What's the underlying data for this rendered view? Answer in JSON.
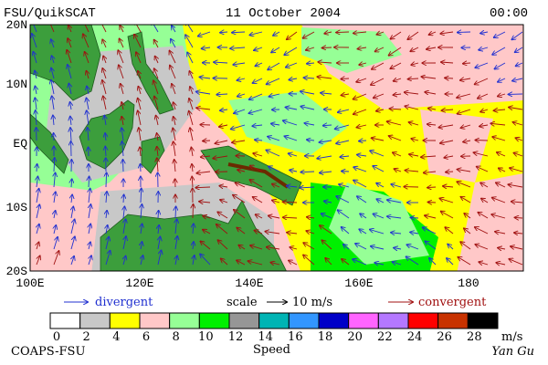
{
  "header": {
    "left": "FSU/QuikSCAT",
    "title": "11 October 2004",
    "time": "00:00"
  },
  "map": {
    "lat_labels": [
      "20N",
      "10N",
      "EQ",
      "10S",
      "20S"
    ],
    "lon_labels": [
      "100E",
      "120E",
      "140E",
      "160E",
      "180"
    ]
  },
  "key": {
    "divergent": "divergent",
    "scale": "scale",
    "scale_value": "10 m/s",
    "convergent": "convergent"
  },
  "colorbar": {
    "ticks": [
      0,
      2,
      4,
      6,
      8,
      10,
      12,
      14,
      16,
      18,
      20,
      22,
      24,
      26,
      28
    ],
    "unit": "m/s",
    "title": "Speed",
    "colors": [
      "#ffffff",
      "#c8c8c8",
      "#ffff00",
      "#ffc8c8",
      "#96ff96",
      "#00f000",
      "#969696",
      "#00b4b4",
      "#3296ff",
      "#0000c8",
      "#ff64ff",
      "#b478ff",
      "#ff0000",
      "#c83200",
      "#000000"
    ]
  },
  "footer": {
    "left": "COAPS-FSU",
    "right": "Yan Gu"
  }
}
